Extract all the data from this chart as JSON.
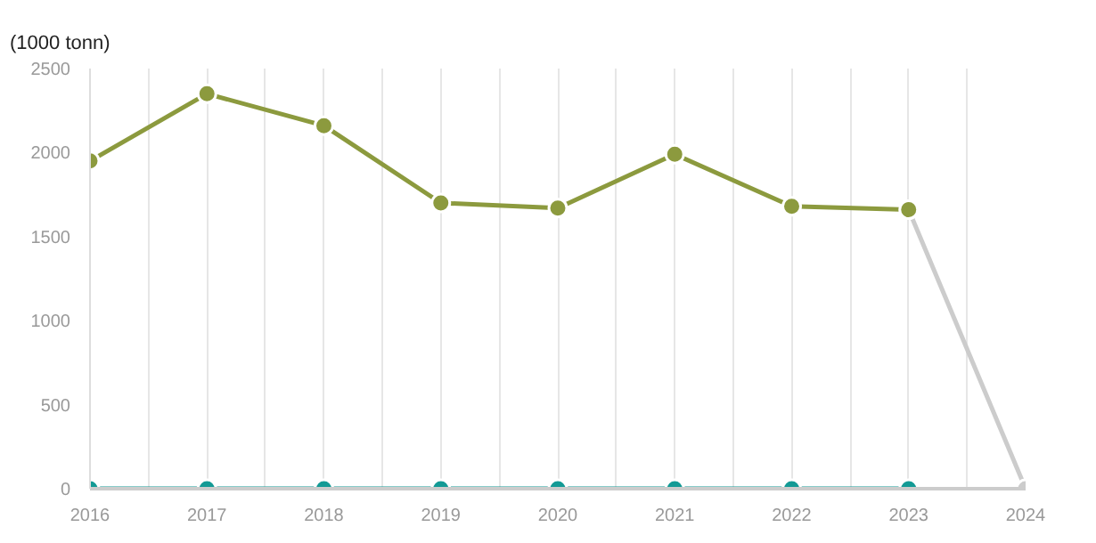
{
  "chart_data": {
    "type": "line",
    "ylabel": "(1000 tonn)",
    "x": [
      2016,
      2017,
      2018,
      2019,
      2020,
      2021,
      2022,
      2023
    ],
    "series": [
      {
        "color": "#cccccc",
        "x": [
          2023,
          2024
        ],
        "values": [
          1660,
          0
        ]
      },
      {
        "color": "#8c9a3e",
        "values": [
          1950,
          2350,
          2160,
          1700,
          1670,
          1990,
          1680,
          1660
        ]
      },
      {
        "color": "#139a95",
        "values": [
          0,
          0,
          0,
          0,
          0,
          0,
          0,
          0
        ]
      }
    ],
    "xlim": [
      2016,
      2024
    ],
    "ylim": [
      0,
      2500
    ],
    "xticks": [
      2016,
      {
        "value": 2016.5,
        "label": null
      },
      2017,
      {
        "value": 2017.5,
        "label": null
      },
      2018,
      {
        "value": 2018.5,
        "label": null
      },
      2019,
      {
        "value": 2019.5,
        "label": null
      },
      2020,
      {
        "value": 2020.5,
        "label": null
      },
      2021,
      {
        "value": 2021.5,
        "label": null
      },
      2022,
      {
        "value": 2022.5,
        "label": null
      },
      2023,
      {
        "value": 2023.5,
        "label": null
      },
      2024
    ],
    "yticks": [
      0,
      500,
      1000,
      1500,
      2000,
      2500
    ],
    "grid": "x",
    "marker": "circle",
    "line_style": "solid"
  }
}
